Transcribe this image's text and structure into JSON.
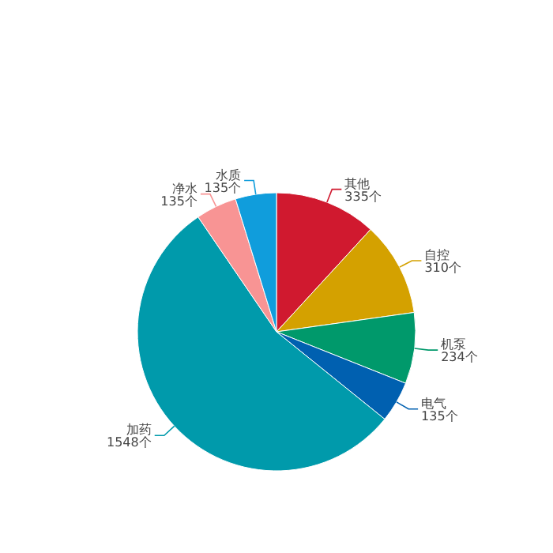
{
  "chart_data": {
    "type": "pie",
    "categories": [
      "其他",
      "自控",
      "机泵",
      "电气",
      "加药",
      "净水",
      "水质"
    ],
    "values": [
      335,
      310,
      234,
      135,
      1548,
      135,
      135
    ],
    "colors": [
      "#d0192f",
      "#d4a100",
      "#00996b",
      "#0060b0",
      "#009aab",
      "#f89494",
      "#109ddc"
    ],
    "value_labels": [
      "335个",
      "310个",
      "234个",
      "135个",
      "1548个",
      "135个",
      "135个"
    ]
  }
}
